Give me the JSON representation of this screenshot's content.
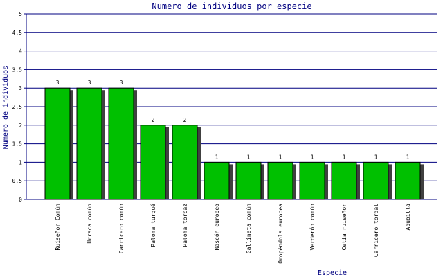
{
  "chart_data": {
    "type": "bar",
    "title": "Numero de individuos por especie",
    "x_label": "Especie",
    "y_label": "Numero de individuos",
    "categories": [
      "Ruiseñor Común",
      "Urraca común",
      "Carricero común",
      "Paloma turqué",
      "Paloma torcaz",
      "Rascón europeo",
      "Gallineta común",
      "Oropéndola europea",
      "Verderón común",
      "Cetia ruiseñor",
      "Carricero tordal",
      "Abubilla"
    ],
    "values": [
      3,
      3,
      3,
      2,
      2,
      1,
      1,
      1,
      1,
      1,
      1,
      1
    ],
    "color": "#00c000",
    "ylim": [
      0,
      5
    ],
    "yticks": [
      0,
      0.5,
      1,
      1.5,
      2,
      2.5,
      3,
      3.5,
      4,
      4.5,
      5
    ],
    "grid": true
  }
}
